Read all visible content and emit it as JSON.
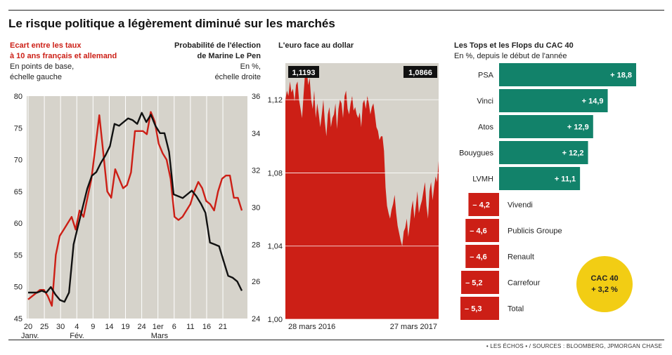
{
  "title": "Le risque politique a légèrement diminué sur les marchés",
  "source": "• LES ÉCHOS • / SOURCES : BLOOMBERG, JPMORGAN CHASE",
  "colors": {
    "red": "#cc1f16",
    "green": "#12826a",
    "grey": "#d6d3cb",
    "yellow": "#f2cd14",
    "black": "#111111"
  },
  "panel1": {
    "left_title_1": "Ecart entre les taux",
    "left_title_2": "à 10 ans français et allemand",
    "left_sub_1": "En points de base,",
    "left_sub_2": "échelle gauche",
    "right_title_1": "Probabilité de l'élection",
    "right_title_2": "de Marine Le Pen",
    "right_sub_1": "En %,",
    "right_sub_2": "échelle droite",
    "months": [
      "Janv.",
      "Fév.",
      "Mars"
    ]
  },
  "panel2": {
    "title": "L'euro face au dollar"
  },
  "panel3": {
    "title": "Les Tops et les Flops du CAC 40",
    "subtitle": "En %, depuis le début de l'année"
  },
  "chart_data": [
    {
      "type": "line",
      "x_tick_labels": [
        "20",
        "25",
        "30",
        "4",
        "9",
        "14",
        "19",
        "24",
        "1er",
        "6",
        "11",
        "16",
        "21"
      ],
      "ylim_left": [
        45,
        80
      ],
      "yticks_left": [
        45,
        50,
        55,
        60,
        65,
        70,
        75,
        80
      ],
      "ylim_right": [
        24,
        36
      ],
      "yticks_right": [
        24,
        26,
        28,
        30,
        32,
        34,
        36
      ],
      "series": [
        {
          "axis": "left",
          "color": "#cc1f16",
          "values": [
            48,
            48.5,
            49,
            49.5,
            49.5,
            48.5,
            47,
            55,
            58,
            59,
            60,
            61,
            59,
            62,
            61,
            64,
            67,
            72,
            77,
            71,
            65,
            64,
            68.5,
            67,
            65.5,
            66,
            68,
            74.5,
            74.5,
            74.5,
            74,
            77.5,
            76,
            72.5,
            71,
            70,
            67,
            61,
            60.5,
            61,
            62,
            63,
            65,
            66.5,
            65.5,
            63.5,
            63,
            62,
            65,
            67,
            67.5,
            67.5,
            64,
            64,
            62
          ]
        },
        {
          "axis": "right",
          "color": "#111111",
          "values": [
            25.4,
            25.4,
            25.4,
            25.5,
            25.4,
            25.7,
            25.3,
            25.0,
            24.9,
            25.4,
            28,
            29,
            30,
            31,
            31.7,
            31.9,
            32.4,
            32.8,
            33.3,
            34.5,
            34.4,
            34.6,
            34.8,
            34.7,
            34.5,
            35.1,
            34.6,
            35.0,
            34.4,
            34.0,
            34.0,
            33.0,
            30.7,
            30.6,
            30.5,
            30.7,
            30.9,
            30.6,
            30.2,
            29.7,
            28.1,
            28.0,
            27.9,
            27.1,
            26.3,
            26.2,
            26.0,
            25.5
          ]
        }
      ]
    },
    {
      "type": "area",
      "x_tick_labels": [
        "28 mars 2016",
        "27 mars 2017"
      ],
      "ylim": [
        1.0,
        1.14
      ],
      "yticks": [
        1.0,
        1.04,
        1.08,
        1.12
      ],
      "start_label": "1,1193",
      "end_label": "1,0866",
      "values": [
        1.12,
        1.125,
        1.122,
        1.13,
        1.124,
        1.126,
        1.119,
        1.128,
        1.13,
        1.12,
        1.115,
        1.11,
        1.123,
        1.135,
        1.138,
        1.128,
        1.132,
        1.12,
        1.115,
        1.125,
        1.11,
        1.118,
        1.112,
        1.105,
        1.112,
        1.12,
        1.108,
        1.1,
        1.112,
        1.116,
        1.105,
        1.11,
        1.112,
        1.118,
        1.104,
        1.115,
        1.12,
        1.118,
        1.11,
        1.122,
        1.125,
        1.115,
        1.112,
        1.118,
        1.122,
        1.114,
        1.116,
        1.112,
        1.11,
        1.113,
        1.105,
        1.118,
        1.12,
        1.115,
        1.122,
        1.118,
        1.112,
        1.116,
        1.118,
        1.112,
        1.105,
        1.103,
        1.098,
        1.1,
        1.1,
        1.092,
        1.072,
        1.062,
        1.058,
        1.055,
        1.06,
        1.063,
        1.068,
        1.058,
        1.051,
        1.047,
        1.043,
        1.04,
        1.048,
        1.05,
        1.055,
        1.045,
        1.052,
        1.06,
        1.065,
        1.055,
        1.062,
        1.07,
        1.058,
        1.062,
        1.065,
        1.07,
        1.075,
        1.062,
        1.055,
        1.07,
        1.075,
        1.065,
        1.072,
        1.078,
        1.075,
        1.0866
      ]
    },
    {
      "type": "bar",
      "categories": [
        "PSA",
        "Vinci",
        "Atos",
        "Bouygues",
        "LVMH",
        "Vivendi",
        "Publicis Groupe",
        "Renault",
        "Carrefour",
        "Total"
      ],
      "values": [
        18.8,
        14.9,
        12.9,
        12.2,
        11.1,
        -4.2,
        -4.6,
        -4.6,
        -5.2,
        -5.3
      ],
      "labels": [
        "+ 18,8",
        "+ 14,9",
        "+ 12,9",
        "+ 12,2",
        "+ 11,1",
        "– 4,2",
        "– 4,6",
        "– 4,6",
        "– 5,2",
        "– 5,3"
      ],
      "badge_name": "CAC 40",
      "badge_value": "+ 3,2 %"
    }
  ]
}
